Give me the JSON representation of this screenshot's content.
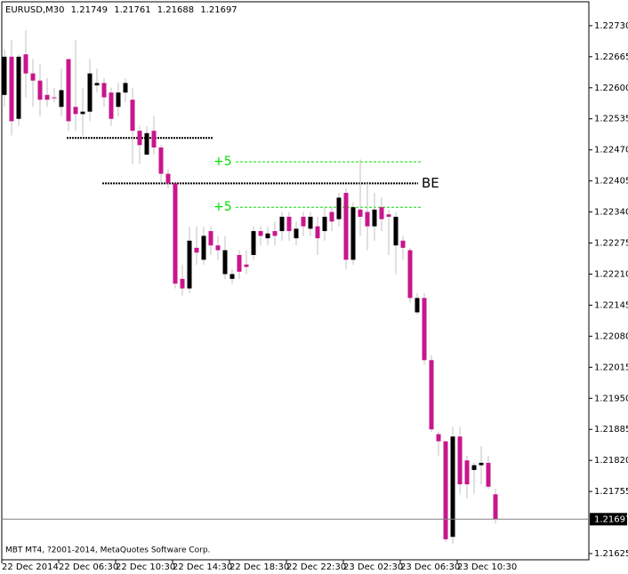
{
  "chart_data": {
    "type": "candlestick",
    "symbol": "EURUSD,M30",
    "copyright": "MBT MT4, ?2001-2014, MetaQuotes Software Corp.",
    "open": [
      1.22585,
      1.22665,
      1.22535,
      1.2267,
      1.2263,
      1.22615,
      1.22585,
      1.2258,
      1.2256,
      1.2266,
      1.2256,
      1.22545,
      1.2255,
      1.22605,
      1.2261,
      1.2259,
      1.2256,
      1.2259,
      1.22575,
      1.2251,
      1.2246,
      1.2251,
      1.22475,
      1.2242,
      1.224,
      1.222,
      1.2218,
      1.22265,
      1.2224,
      1.223,
      1.2227,
      1.2221,
      1.222,
      1.2225,
      1.2223,
      1.2225,
      1.223,
      1.22285,
      1.223,
      1.223,
      1.2233,
      1.22285,
      1.2233,
      1.22305,
      1.2231,
      1.223,
      1.2234,
      1.22325,
      1.2238,
      1.2224,
      1.22345,
      1.2234,
      1.2231,
      1.2235,
      1.22335,
      1.2227,
      1.2228,
      1.2226,
      1.2213,
      1.2216,
      1.2203,
      1.21875,
      1.2186,
      1.2166,
      1.2187,
      1.2182,
      1.218,
      1.2181,
      1.21815,
      1.21749
    ],
    "high": [
      1.2268,
      1.227,
      1.2267,
      1.2272,
      1.2266,
      1.2265,
      1.2262,
      1.226,
      1.2264,
      1.2266,
      1.227,
      1.226,
      1.2266,
      1.2264,
      1.2262,
      1.226,
      1.2261,
      1.2262,
      1.226,
      1.2252,
      1.2252,
      1.2254,
      1.2248,
      1.2243,
      1.224,
      1.2223,
      1.2231,
      1.2231,
      1.2231,
      1.2231,
      1.2229,
      1.2229,
      1.2222,
      1.2226,
      1.2226,
      1.2231,
      1.2231,
      1.2231,
      1.2232,
      1.2234,
      1.2234,
      1.2232,
      1.2234,
      1.2234,
      1.2233,
      1.2235,
      1.2235,
      1.2238,
      1.2239,
      1.2236,
      1.2245,
      1.224,
      1.2238,
      1.2237,
      1.22345,
      1.2234,
      1.2229,
      1.22265,
      1.2217,
      1.2217,
      1.2204,
      1.2188,
      1.2186,
      1.2189,
      1.2189,
      1.2183,
      1.21815,
      1.2185,
      1.2183,
      1.21761
    ],
    "low": [
      1.2256,
      1.225,
      1.2252,
      1.2258,
      1.2256,
      1.2254,
      1.2256,
      1.2257,
      1.2254,
      1.2251,
      1.2251,
      1.225,
      1.2253,
      1.2259,
      1.2256,
      1.2252,
      1.2254,
      1.2257,
      1.2244,
      1.2244,
      1.2246,
      1.2246,
      1.224,
      1.2239,
      1.2218,
      1.22165,
      1.2217,
      1.2223,
      1.2223,
      1.2225,
      1.2224,
      1.222,
      1.2219,
      1.222,
      1.2221,
      1.2224,
      1.2227,
      1.2227,
      1.2227,
      1.2228,
      1.2228,
      1.2227,
      1.2229,
      1.2229,
      1.2225,
      1.2228,
      1.223,
      1.2231,
      1.2222,
      1.2223,
      1.2229,
      1.2226,
      1.2228,
      1.223,
      1.2225,
      1.2221,
      1.2224,
      1.2215,
      1.22125,
      1.2202,
      1.2188,
      1.2183,
      1.2165,
      1.21645,
      1.2175,
      1.2174,
      1.2175,
      1.2177,
      1.2176,
      1.21688
    ],
    "close": [
      1.22665,
      1.2253,
      1.22665,
      1.2263,
      1.22615,
      1.22575,
      1.22575,
      1.2258,
      1.22595,
      1.2253,
      1.22545,
      1.2255,
      1.2263,
      1.2261,
      1.2258,
      1.22535,
      1.2259,
      1.2261,
      1.2251,
      1.2248,
      1.22505,
      1.22475,
      1.2242,
      1.224,
      1.2219,
      1.2218,
      1.2228,
      1.22255,
      1.2229,
      1.2227,
      1.2226,
      1.2226,
      1.2221,
      1.22215,
      1.22225,
      1.223,
      1.2229,
      1.22295,
      1.2229,
      1.2233,
      1.223,
      1.22305,
      1.2231,
      1.2233,
      1.22285,
      1.2233,
      1.2232,
      1.2237,
      1.2224,
      1.2235,
      1.2233,
      1.2231,
      1.22345,
      1.22325,
      1.2233,
      1.2233,
      1.22265,
      1.2216,
      1.2216,
      1.2203,
      1.21885,
      1.2186,
      1.21655,
      1.2187,
      1.2177,
      1.2177,
      1.2181,
      1.21815,
      1.21765,
      1.21697
    ],
    "bull_color": "#000000",
    "bear_color": "#c8168c",
    "wick_color": "#c0c0c0",
    "xlim": [
      -0.375,
      82.125
    ],
    "xticks": [
      {
        "value": 0,
        "label": "22 Dec 2014"
      },
      {
        "value": 8,
        "label": "22 Dec 06:30"
      },
      {
        "value": 16,
        "label": "22 Dec 10:30"
      },
      {
        "value": 24,
        "label": "22 Dec 14:30"
      },
      {
        "value": 32,
        "label": "22 Dec 18:30"
      },
      {
        "value": 40,
        "label": "22 Dec 22:30"
      },
      {
        "value": 48,
        "label": "23 Dec 02:30"
      },
      {
        "value": 56,
        "label": "23 Dec 06:30"
      },
      {
        "value": 64,
        "label": "23 Dec 10:30"
      }
    ],
    "ylim": [
      1.21612,
      1.2278
    ],
    "yticks": [
      {
        "value": 1.2273,
        "label": "1.22730"
      },
      {
        "value": 1.22665,
        "label": "1.22665"
      },
      {
        "value": 1.226,
        "label": "1.22600"
      },
      {
        "value": 1.22535,
        "label": "1.22535"
      },
      {
        "value": 1.2247,
        "label": "1.22470"
      },
      {
        "value": 1.22405,
        "label": "1.22405"
      },
      {
        "value": 1.2234,
        "label": "1.22340"
      },
      {
        "value": 1.22275,
        "label": "1.22275"
      },
      {
        "value": 1.2221,
        "label": "1.22210"
      },
      {
        "value": 1.22145,
        "label": "1.22145"
      },
      {
        "value": 1.2208,
        "label": "1.22080"
      },
      {
        "value": 1.22015,
        "label": "1.22015"
      },
      {
        "value": 1.2195,
        "label": "1.21950"
      },
      {
        "value": 1.21885,
        "label": "1.21885"
      },
      {
        "value": 1.2182,
        "label": "1.21820"
      },
      {
        "value": 1.21755,
        "label": "1.21755"
      },
      {
        "value": 1.21625,
        "label": "1.21625"
      }
    ],
    "levels": [
      {
        "value": 1.22495,
        "color": "#000000"
      },
      {
        "value": 1.224,
        "label": "BE",
        "color": "#000000"
      },
      {
        "value": 1.22445,
        "label": "+5",
        "color": "#00e000"
      },
      {
        "value": 1.2235,
        "label": "+5",
        "color": "#00e000"
      }
    ]
  }
}
